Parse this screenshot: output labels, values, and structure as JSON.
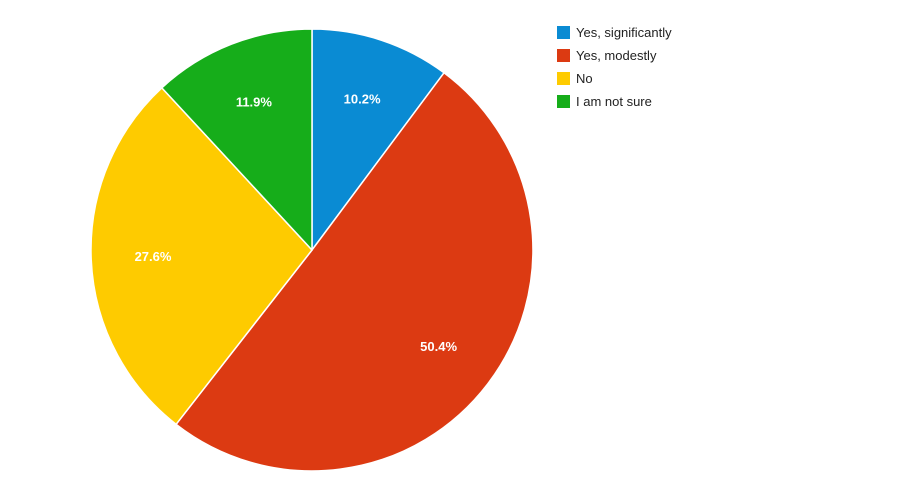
{
  "chart_data": {
    "type": "pie",
    "title": "",
    "legend_position": "top-right",
    "slices": [
      {
        "label": "Yes, significantly",
        "value": 10.2,
        "display": "10.2%",
        "color": "#0a8bd3"
      },
      {
        "label": "Yes, modestly",
        "value": 50.4,
        "display": "50.4%",
        "color": "#dc3a12"
      },
      {
        "label": "No",
        "value": 27.6,
        "display": "27.6%",
        "color": "#fecb00"
      },
      {
        "label": "I am not sure",
        "value": 11.9,
        "display": "11.9%",
        "color": "#16ad1a"
      }
    ]
  }
}
